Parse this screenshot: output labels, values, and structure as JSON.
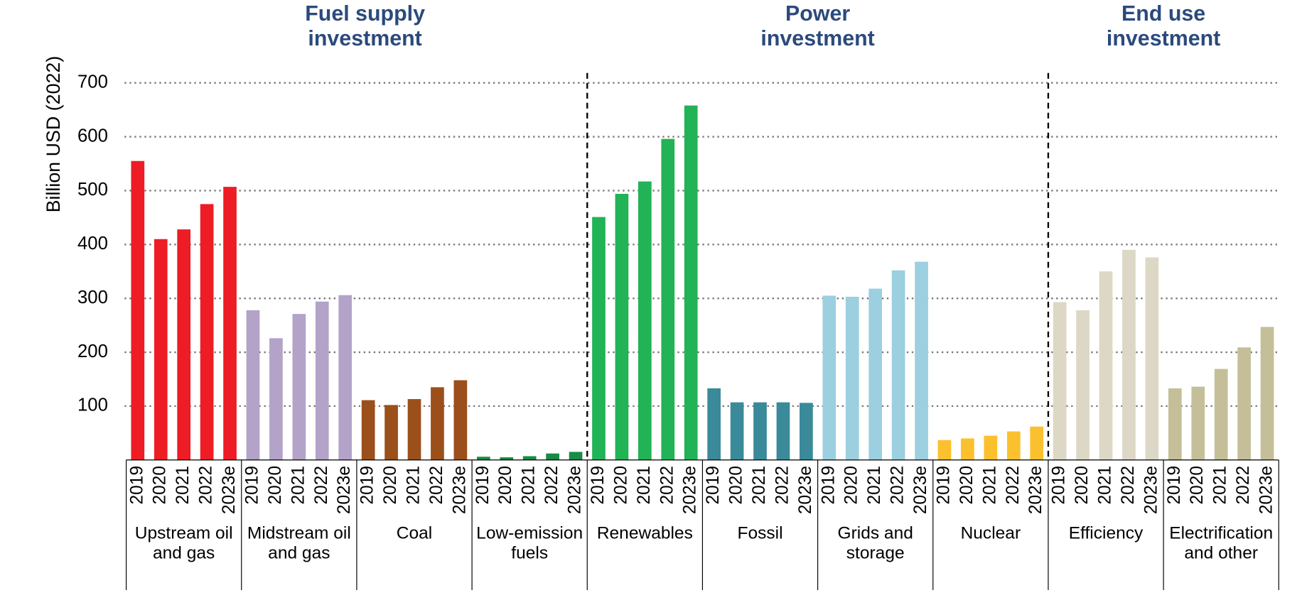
{
  "chart_data": {
    "type": "bar",
    "y_label": "Billion USD (2022)",
    "ylim": [
      0,
      700
    ],
    "yticks": [
      100,
      200,
      300,
      400,
      500,
      600,
      700
    ],
    "grid": true,
    "categories": [
      "2019",
      "2020",
      "2021",
      "2022",
      "2023e"
    ],
    "sections": [
      {
        "title": "Fuel supply investment",
        "groups": [
          {
            "name": "Upstream oil and gas",
            "color": "#ee1c25",
            "values": [
              555,
              410,
              428,
              475,
              507
            ]
          },
          {
            "name": "Midstream oil and gas",
            "color": "#b3a3c8",
            "values": [
              278,
              226,
              271,
              294,
              306
            ]
          },
          {
            "name": "Coal",
            "color": "#9b4f1b",
            "values": [
              111,
              102,
              113,
              135,
              148
            ]
          },
          {
            "name": "Low-emission fuels",
            "color": "#1a8a45",
            "values": [
              6,
              5,
              7,
              12,
              15
            ]
          }
        ]
      },
      {
        "title": "Power investment",
        "groups": [
          {
            "name": "Renewables",
            "color": "#21b356",
            "values": [
              451,
              494,
              517,
              596,
              658
            ]
          },
          {
            "name": "Fossil",
            "color": "#3a8a9a",
            "values": [
              133,
              107,
              107,
              107,
              106
            ]
          },
          {
            "name": "Grids and storage",
            "color": "#9ccfe0",
            "values": [
              305,
              303,
              318,
              352,
              368
            ]
          },
          {
            "name": "Nuclear",
            "color": "#fbc02d",
            "values": [
              37,
              40,
              45,
              53,
              62
            ]
          }
        ]
      },
      {
        "title": "End use investment",
        "groups": [
          {
            "name": "Efficiency",
            "color": "#dcd8c5",
            "values": [
              293,
              278,
              350,
              390,
              376
            ]
          },
          {
            "name": "Electrification and other",
            "color": "#c4bf98",
            "values": [
              133,
              136,
              169,
              209,
              247
            ]
          }
        ]
      }
    ]
  }
}
